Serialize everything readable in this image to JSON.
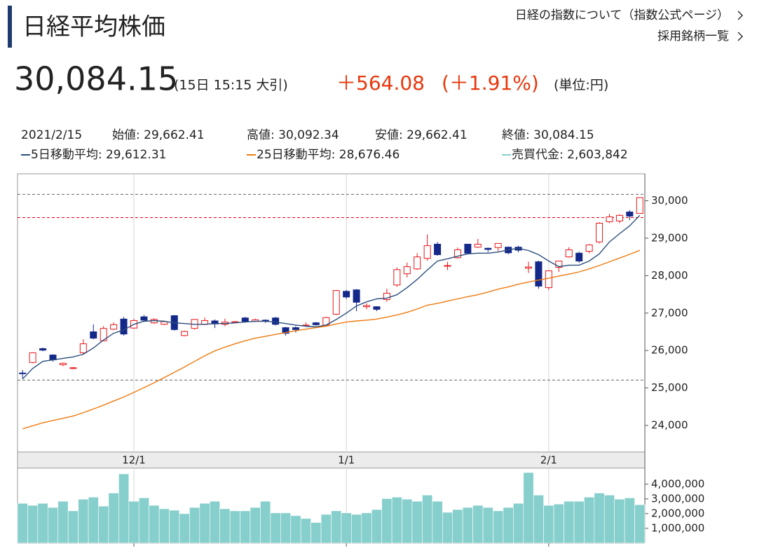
{
  "header": {
    "title": "日経平均株価",
    "links": [
      "日経の指数について（指数公式ページ）",
      "採用銘柄一覧"
    ],
    "price": "30,084.15",
    "time": "(15日 15:15 大引)",
    "change": "＋564.08",
    "change_pct": "(＋1.91%)",
    "unit": "(単位:円)"
  },
  "chart_data": [
    {
      "type": "candlestick",
      "info": [
        "2021/2/15",
        "始値: 29,662.41",
        "高値: 30,092.34",
        "安値: 29,662.41",
        "終値: 30,084.15"
      ],
      "categories": [
        null,
        null,
        null,
        null,
        null,
        null,
        null,
        null,
        null,
        null,
        null,
        "12/1",
        null,
        null,
        null,
        null,
        null,
        null,
        null,
        null,
        null,
        null,
        null,
        null,
        null,
        null,
        null,
        null,
        null,
        null,
        null,
        null,
        "1/1",
        null,
        null,
        null,
        null,
        null,
        null,
        null,
        null,
        null,
        null,
        null,
        null,
        null,
        null,
        null,
        null,
        null,
        null,
        null,
        "2/1",
        null,
        null,
        null,
        null,
        null,
        null,
        null,
        null,
        null
      ],
      "open": [
        25400,
        25680,
        26050,
        25880,
        25620,
        25520,
        25940,
        26500,
        26260,
        26570,
        26840,
        26600,
        26900,
        26740,
        26700,
        26930,
        26400,
        26590,
        26700,
        26790,
        26700,
        26750,
        26870,
        26780,
        26810,
        26870,
        26610,
        26610,
        26660,
        26740,
        26680,
        26970,
        27580,
        27620,
        27170,
        27170,
        27360,
        27750,
        28050,
        28180,
        28460,
        28840,
        28250,
        28480,
        28840,
        28760,
        28730,
        28750,
        28760,
        28760,
        28200,
        28370,
        27680,
        28220,
        28500,
        28600,
        28650,
        28900,
        29440,
        29460,
        29700,
        29662.41
      ],
      "high": [
        25480,
        25950,
        26080,
        25900,
        25680,
        25560,
        26300,
        26700,
        26650,
        26750,
        26900,
        26850,
        26950,
        26860,
        26800,
        26950,
        26530,
        26840,
        26880,
        26830,
        26850,
        26790,
        26900,
        26850,
        26830,
        26900,
        26630,
        26650,
        26750,
        26760,
        26900,
        27620,
        27620,
        27640,
        27260,
        27180,
        27650,
        28220,
        28350,
        28600,
        29100,
        28900,
        28370,
        28750,
        28850,
        28980,
        28750,
        28870,
        28780,
        28800,
        28370,
        28400,
        28140,
        28400,
        28760,
        28640,
        28840,
        29430,
        29650,
        29640,
        29750,
        30092.34
      ],
      "low": [
        25250,
        25660,
        25980,
        25700,
        25580,
        25500,
        25900,
        26300,
        26250,
        26550,
        26400,
        26580,
        26780,
        26710,
        26680,
        26530,
        26380,
        26560,
        26680,
        26600,
        26650,
        26730,
        26760,
        26760,
        26740,
        26670,
        26400,
        26480,
        26630,
        26660,
        26660,
        26950,
        27380,
        27050,
        27100,
        27050,
        27300,
        27700,
        27950,
        28150,
        28400,
        28530,
        28150,
        28450,
        28580,
        28740,
        28630,
        28650,
        28570,
        28620,
        28070,
        27650,
        27620,
        28100,
        28480,
        28340,
        28600,
        28860,
        29400,
        29400,
        29480,
        29662.41
      ],
      "close": [
        25380,
        25940,
        26010,
        25750,
        25660,
        25540,
        26180,
        26330,
        26590,
        26690,
        26440,
        26800,
        26810,
        26830,
        26770,
        26560,
        26510,
        26830,
        26800,
        26710,
        26760,
        26770,
        26780,
        26820,
        26780,
        26700,
        26460,
        26560,
        26680,
        26690,
        26880,
        27600,
        27430,
        27290,
        27200,
        27100,
        27530,
        28160,
        28240,
        28500,
        28800,
        28560,
        28270,
        28690,
        28600,
        28840,
        28700,
        28860,
        28610,
        28680,
        28230,
        27720,
        28130,
        28390,
        28690,
        28390,
        28820,
        29400,
        29570,
        29610,
        29590,
        30084.15
      ],
      "up_color": "#e8171b",
      "down_color": "#14288a",
      "series": [
        {
          "name": "5日移動平均: 29,612.31",
          "color": "#2c4f7c",
          "values": [
            25240,
            25520,
            25710,
            25750,
            25790,
            25830,
            25900,
            26070,
            26280,
            26460,
            26550,
            26700,
            26780,
            26800,
            26780,
            26740,
            26720,
            26700,
            26700,
            26720,
            26720,
            26740,
            26760,
            26780,
            26780,
            26760,
            26720,
            26680,
            26650,
            26630,
            26680,
            26830,
            27000,
            27190,
            27300,
            27380,
            27400,
            27490,
            27680,
            27900,
            28150,
            28390,
            28450,
            28520,
            28580,
            28600,
            28600,
            28630,
            28690,
            28730,
            28670,
            28560,
            28390,
            28240,
            28280,
            28280,
            28390,
            28580,
            28900,
            29120,
            29330,
            29612.31
          ]
        },
        {
          "name": "25日移動平均: 28,676.46",
          "color": "#ee7a10",
          "values": [
            23910,
            23990,
            24070,
            24130,
            24190,
            24250,
            24340,
            24440,
            24540,
            24650,
            24760,
            24880,
            25010,
            25140,
            25280,
            25420,
            25560,
            25710,
            25860,
            25990,
            26090,
            26180,
            26260,
            26330,
            26380,
            26430,
            26480,
            26530,
            26570,
            26610,
            26650,
            26710,
            26760,
            26790,
            26810,
            26840,
            26890,
            26950,
            27020,
            27110,
            27210,
            27260,
            27320,
            27380,
            27440,
            27490,
            27560,
            27640,
            27700,
            27770,
            27830,
            27880,
            27930,
            27990,
            28040,
            28100,
            28180,
            28270,
            28370,
            28470,
            28570,
            28676.46
          ]
        }
      ],
      "reference_lines": [
        {
          "value": 30170,
          "color": "#666666"
        },
        {
          "value": 29550,
          "color": "#e60012"
        },
        {
          "value": 25210,
          "color": "#666666"
        }
      ],
      "ylim": [
        23290,
        30720
      ],
      "yticks": [
        {
          "value": 24000,
          "label": "24,000"
        },
        {
          "value": 25000,
          "label": "25,000"
        },
        {
          "value": 26000,
          "label": "26,000"
        },
        {
          "value": 27000,
          "label": "27,000"
        },
        {
          "value": 28000,
          "label": "28,000"
        },
        {
          "value": 29000,
          "label": "29,000"
        },
        {
          "value": 30000,
          "label": "30,000"
        }
      ],
      "grid": "x"
    },
    {
      "type": "bar",
      "name": "売買代金: 2,603,842",
      "color": "#86cfcc",
      "values": [
        2700000,
        2560000,
        2700000,
        2420000,
        2840000,
        2190000,
        2980000,
        3120000,
        2510000,
        3400000,
        4700000,
        2840000,
        3070000,
        2560000,
        2330000,
        2230000,
        2000000,
        2420000,
        2700000,
        2840000,
        2330000,
        2190000,
        2190000,
        2420000,
        2840000,
        2050000,
        2050000,
        1860000,
        1670000,
        1400000,
        1950000,
        2190000,
        2050000,
        1950000,
        2050000,
        2280000,
        3020000,
        3120000,
        2980000,
        2840000,
        3260000,
        2840000,
        2090000,
        2280000,
        2420000,
        2560000,
        2420000,
        2190000,
        2420000,
        2700000,
        4790000,
        3260000,
        2560000,
        2650000,
        2840000,
        2840000,
        3120000,
        3400000,
        3260000,
        2980000,
        3070000,
        2603842
      ],
      "ylim": [
        0,
        4900000
      ],
      "yticks": [
        {
          "value": 1000000,
          "label": "1,000,000"
        },
        {
          "value": 2000000,
          "label": "2,000,000"
        },
        {
          "value": 3000000,
          "label": "3,000,000"
        },
        {
          "value": 4000000,
          "label": "4,000,000"
        }
      ]
    }
  ]
}
